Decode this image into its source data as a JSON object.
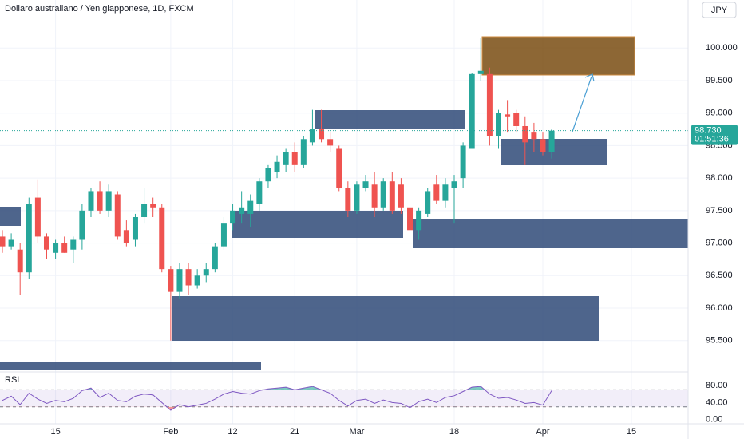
{
  "chart_data": [
    {
      "type": "candlestick",
      "title": "Dollaro australiano / Yen giapponese, 1D, FXCM",
      "currency": "JPY",
      "countdown": "01:51:36",
      "current_price_label": "98.730",
      "up_color": "#26a69a",
      "down_color": "#ef5350",
      "grid": true,
      "open": [
        97.1,
        96.95,
        96.9,
        96.55,
        97.7,
        97.1,
        96.85,
        97.0,
        96.9,
        97.05,
        97.5,
        97.8,
        97.5,
        97.75,
        97.2,
        97.05,
        97.4,
        97.6,
        97.55,
        96.6,
        96.25,
        96.6,
        96.35,
        96.5,
        96.6,
        96.95,
        97.3,
        97.45,
        97.45,
        97.6,
        97.95,
        98.1,
        98.2,
        98.4,
        98.2,
        98.55,
        98.75,
        98.6,
        98.45,
        97.85,
        97.5,
        97.85,
        97.9,
        97.55,
        97.95,
        97.9,
        97.55,
        97.2,
        97.45,
        97.9,
        97.65,
        97.85,
        98.0,
        98.45,
        99.6,
        99.6,
        98.65,
        98.98,
        99.0,
        98.8,
        98.7,
        98.6,
        98.4
      ],
      "high": [
        97.2,
        97.15,
        97.0,
        97.7,
        97.98,
        97.15,
        97.05,
        97.1,
        97.1,
        97.6,
        97.85,
        97.95,
        97.9,
        97.8,
        97.35,
        97.45,
        97.85,
        97.7,
        97.6,
        96.65,
        96.7,
        96.7,
        96.6,
        96.7,
        97.0,
        97.4,
        97.6,
        97.8,
        97.75,
        98.0,
        98.2,
        98.35,
        98.45,
        98.55,
        98.65,
        99.05,
        99.05,
        98.7,
        98.5,
        97.95,
        97.95,
        98.05,
        98.1,
        98.0,
        98.1,
        98.0,
        97.7,
        97.55,
        97.85,
        98.05,
        98.0,
        98.05,
        98.55,
        99.62,
        100.15,
        99.7,
        99.05,
        99.2,
        99.05,
        98.95,
        98.85,
        98.7,
        98.75
      ],
      "low": [
        96.85,
        96.9,
        96.2,
        96.45,
        97.0,
        96.75,
        96.75,
        96.85,
        96.7,
        96.9,
        97.4,
        97.45,
        97.4,
        97.05,
        96.95,
        96.95,
        97.3,
        97.4,
        96.55,
        95.5,
        96.15,
        96.2,
        96.3,
        96.4,
        96.55,
        96.9,
        97.2,
        97.3,
        97.25,
        97.5,
        97.85,
        98.0,
        98.1,
        98.1,
        98.15,
        98.5,
        98.55,
        98.4,
        97.8,
        97.4,
        97.45,
        97.8,
        97.4,
        97.5,
        97.45,
        97.45,
        96.9,
        97.05,
        97.4,
        97.6,
        97.55,
        97.3,
        97.85,
        98.45,
        99.5,
        98.5,
        98.45,
        98.7,
        98.7,
        98.2,
        98.4,
        98.35,
        98.3
      ],
      "close": [
        96.95,
        97.05,
        96.55,
        97.6,
        97.1,
        96.9,
        97.0,
        96.85,
        97.05,
        97.5,
        97.8,
        97.5,
        97.8,
        97.1,
        97.0,
        97.4,
        97.6,
        97.55,
        96.6,
        96.25,
        96.6,
        96.35,
        96.5,
        96.6,
        96.95,
        97.3,
        97.5,
        97.55,
        97.65,
        97.95,
        98.15,
        98.25,
        98.4,
        98.2,
        98.6,
        98.75,
        98.6,
        98.5,
        97.85,
        97.5,
        97.9,
        97.95,
        97.55,
        97.95,
        97.5,
        97.55,
        97.2,
        97.5,
        97.8,
        97.65,
        97.9,
        97.95,
        98.5,
        99.6,
        99.65,
        98.65,
        99.0,
        98.95,
        98.8,
        98.55,
        98.6,
        98.4,
        98.73
      ],
      "xlim": [
        -0.27,
        77.4
      ],
      "xticks": [
        {
          "value": 6,
          "label": "15"
        },
        {
          "value": 19,
          "label": "Feb"
        },
        {
          "value": 26,
          "label": "12"
        },
        {
          "value": 33,
          "label": "21"
        },
        {
          "value": 40,
          "label": "Mar"
        },
        {
          "value": 51,
          "label": "18"
        },
        {
          "value": 61,
          "label": "Apr"
        },
        {
          "value": 71,
          "label": "15"
        }
      ],
      "ylim": [
        95.03,
        100.74
      ],
      "yticks": [
        {
          "value": 95.5,
          "label": "95.500"
        },
        {
          "value": 96,
          "label": "96.000"
        },
        {
          "value": 96.5,
          "label": "96.500"
        },
        {
          "value": 97,
          "label": "97.000"
        },
        {
          "value": 97.5,
          "label": "97.500"
        },
        {
          "value": 98,
          "label": "98.000"
        },
        {
          "value": 98.5,
          "label": "98.500"
        },
        {
          "value": 99,
          "label": "99.000"
        },
        {
          "value": 99.5,
          "label": "99.500"
        },
        {
          "value": 100,
          "label": "100.000"
        }
      ]
    },
    {
      "type": "line",
      "name": "RSI",
      "color": "#7e57c2",
      "values": [
        45,
        55,
        35,
        62,
        48,
        38,
        45,
        42,
        50,
        68,
        74,
        52,
        62,
        45,
        42,
        55,
        60,
        58,
        40,
        22,
        35,
        30,
        34,
        38,
        48,
        60,
        66,
        62,
        60,
        68,
        72,
        74,
        76,
        70,
        74,
        78,
        70,
        62,
        45,
        32,
        45,
        48,
        38,
        46,
        40,
        38,
        28,
        42,
        48,
        40,
        52,
        56,
        66,
        76,
        78,
        60,
        50,
        52,
        46,
        38,
        40,
        34,
        68
      ],
      "bands": [
        30,
        70
      ],
      "ylim": [
        -8,
        110
      ],
      "yticks": [
        {
          "value": 0,
          "label": "0.00"
        },
        {
          "value": 40,
          "label": "40.00"
        },
        {
          "value": 80,
          "label": "80.00"
        }
      ]
    }
  ]
}
